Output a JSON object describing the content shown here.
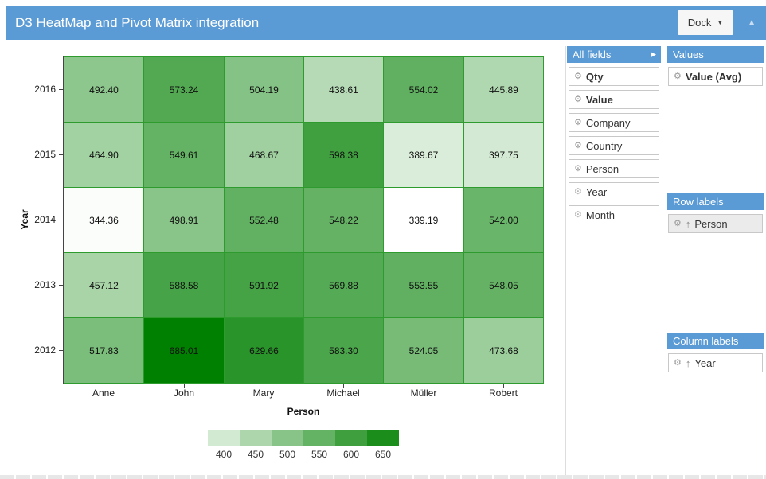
{
  "header": {
    "title": "D3 HeatMap and Pivot Matrix integration",
    "dock_label": "Dock",
    "dock_caret": "▼",
    "collapse_icon": "▲"
  },
  "colors": {
    "accent_blue": "#5b9bd5",
    "cell_border": "#2e9b2e",
    "scale_min_color": "#ffffff",
    "scale_max_color": "#008000"
  },
  "field_chooser": {
    "all_fields": {
      "title": "All fields",
      "expand_icon": "▶",
      "items": [
        {
          "label": "Qty",
          "bold": true
        },
        {
          "label": "Value",
          "bold": true
        },
        {
          "label": "Company",
          "bold": false
        },
        {
          "label": "Country",
          "bold": false
        },
        {
          "label": "Person",
          "bold": false
        },
        {
          "label": "Year",
          "bold": false
        },
        {
          "label": "Month",
          "bold": false
        }
      ]
    },
    "values": {
      "title": "Values",
      "items": [
        {
          "label": "Value (Avg)",
          "bold": true,
          "sorted": false,
          "selected": false
        }
      ]
    },
    "row_labels": {
      "title": "Row labels",
      "items": [
        {
          "label": "Person",
          "bold": false,
          "sorted": true,
          "selected": true
        }
      ]
    },
    "column_labels": {
      "title": "Column labels",
      "items": [
        {
          "label": "Year",
          "bold": false,
          "sorted": true,
          "selected": false
        }
      ]
    },
    "sort_icon": "↑",
    "gear_icon": "⚙"
  },
  "chart_data": {
    "type": "heatmap",
    "x_categories": [
      "Anne",
      "John",
      "Mary",
      "Michael",
      "Müller",
      "Robert"
    ],
    "y_categories": [
      "2016",
      "2015",
      "2014",
      "2013",
      "2012"
    ],
    "rows": [
      [
        492.4,
        573.24,
        504.19,
        438.61,
        554.02,
        445.89
      ],
      [
        464.9,
        549.61,
        468.67,
        598.38,
        389.67,
        397.75
      ],
      [
        344.36,
        498.91,
        552.48,
        548.22,
        339.19,
        542.0
      ],
      [
        457.12,
        588.58,
        591.92,
        569.88,
        553.55,
        548.05
      ],
      [
        517.83,
        685.01,
        629.66,
        583.3,
        524.05,
        473.68
      ]
    ],
    "value_format_decimals": 2,
    "xlabel": "Person",
    "ylabel": "Year",
    "color_domain": [
      339.19,
      685.01
    ],
    "legend": {
      "values": [
        400,
        450,
        500,
        550,
        600,
        650
      ]
    }
  }
}
